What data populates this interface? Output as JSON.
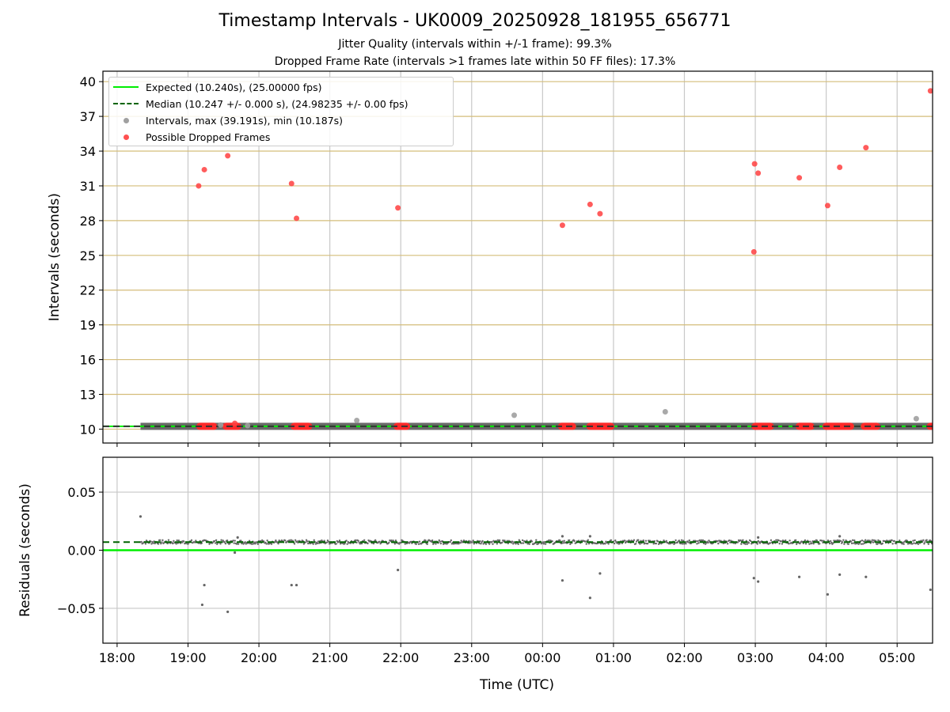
{
  "title": "Timestamp Intervals - UK0009_20250928_181955_656771",
  "subtitle_jitter": "Jitter Quality (intervals within +/-1 frame): 99.3%",
  "subtitle_dropped": "Dropped Frame Rate (intervals >1 frames late within 50 FF files): 17.3%",
  "colors": {
    "expected": "#00ee00",
    "median": "#006400",
    "intervals": "#a0a0a0",
    "dropped": "#ff4040",
    "hgrid_top": "#d4bd7a",
    "grid": "#c8c8c8",
    "residual_dots": "#666666"
  },
  "legend": {
    "expected": "Expected (10.240s), (25.00000 fps)",
    "median": "Median (10.247 +/- 0.000 s), (24.98235 +/- 0.00 fps)",
    "intervals": "Intervals, max (39.191s), min (10.187s)",
    "dropped": "Possible Dropped Frames"
  },
  "chart_data": [
    {
      "type": "scatter",
      "panel": "intervals",
      "ylabel": "Intervals (seconds)",
      "ylim": [
        8.8,
        40.9
      ],
      "yticks": [
        "10",
        "13",
        "16",
        "19",
        "22",
        "25",
        "28",
        "31",
        "34",
        "37",
        "40"
      ],
      "xlim_hours": [
        17.8,
        29.5
      ],
      "expected_value": 10.24,
      "median_value": 10.247,
      "intervals_outliers": [
        {
          "x": 21.38,
          "y": 10.75
        },
        {
          "x": 23.6,
          "y": 11.2
        },
        {
          "x": 25.73,
          "y": 11.5
        },
        {
          "x": 29.27,
          "y": 10.9
        },
        {
          "x": 19.46,
          "y": 10.35
        },
        {
          "x": 19.84,
          "y": 10.3
        }
      ],
      "intervals_band": {
        "x_start": 18.33,
        "x_end": 29.5,
        "y": 10.24
      },
      "dropped_frames": [
        {
          "x": 19.15,
          "y": 31.0
        },
        {
          "x": 19.23,
          "y": 32.4
        },
        {
          "x": 19.56,
          "y": 33.6
        },
        {
          "x": 20.46,
          "y": 31.2
        },
        {
          "x": 20.53,
          "y": 28.2
        },
        {
          "x": 21.96,
          "y": 29.1
        },
        {
          "x": 24.28,
          "y": 27.6
        },
        {
          "x": 24.67,
          "y": 29.4
        },
        {
          "x": 24.81,
          "y": 28.6
        },
        {
          "x": 26.98,
          "y": 25.3
        },
        {
          "x": 26.99,
          "y": 32.9
        },
        {
          "x": 27.04,
          "y": 32.1
        },
        {
          "x": 27.62,
          "y": 31.7
        },
        {
          "x": 28.02,
          "y": 29.3
        },
        {
          "x": 28.19,
          "y": 32.6
        },
        {
          "x": 28.56,
          "y": 34.3
        },
        {
          "x": 29.47,
          "y": 39.2
        },
        {
          "x": 19.66,
          "y": 10.5
        }
      ],
      "dropped_clusters": [
        [
          19.15,
          19.38
        ],
        [
          19.52,
          19.72
        ],
        [
          20.48,
          20.72
        ],
        [
          21.93,
          22.1
        ],
        [
          24.25,
          24.44
        ],
        [
          24.65,
          24.98
        ],
        [
          26.98,
          27.23
        ],
        [
          27.6,
          27.8
        ],
        [
          27.98,
          28.36
        ],
        [
          28.52,
          28.73
        ],
        [
          29.45,
          29.5
        ]
      ]
    },
    {
      "type": "scatter",
      "panel": "residuals",
      "ylabel": "Residuals (seconds)",
      "xlabel": "Time (UTC)",
      "ylim": [
        -0.08,
        0.08
      ],
      "yticks": [
        "0.05",
        "0.00",
        "−0.05"
      ],
      "ytick_values": [
        0.05,
        0.0,
        -0.05
      ],
      "xticks": [
        "18:00",
        "19:00",
        "20:00",
        "21:00",
        "22:00",
        "23:00",
        "00:00",
        "01:00",
        "02:00",
        "03:00",
        "04:00",
        "05:00"
      ],
      "xtick_hours": [
        18,
        19,
        20,
        21,
        22,
        23,
        24,
        25,
        26,
        27,
        28,
        29
      ],
      "expected_value": 0.0,
      "median_value": 0.007,
      "residual_outliers": [
        {
          "x": 18.33,
          "y": 0.029
        },
        {
          "x": 19.2,
          "y": -0.047
        },
        {
          "x": 19.23,
          "y": -0.03
        },
        {
          "x": 19.56,
          "y": -0.053
        },
        {
          "x": 19.66,
          "y": -0.002
        },
        {
          "x": 20.46,
          "y": -0.03
        },
        {
          "x": 20.53,
          "y": -0.03
        },
        {
          "x": 21.96,
          "y": -0.017
        },
        {
          "x": 24.28,
          "y": -0.026
        },
        {
          "x": 24.67,
          "y": -0.041
        },
        {
          "x": 24.81,
          "y": -0.02
        },
        {
          "x": 26.98,
          "y": -0.024
        },
        {
          "x": 27.04,
          "y": -0.027
        },
        {
          "x": 27.62,
          "y": -0.023
        },
        {
          "x": 28.02,
          "y": -0.038
        },
        {
          "x": 28.19,
          "y": -0.021
        },
        {
          "x": 28.56,
          "y": -0.023
        },
        {
          "x": 29.47,
          "y": -0.034
        },
        {
          "x": 24.28,
          "y": 0.012
        },
        {
          "x": 24.67,
          "y": 0.012
        },
        {
          "x": 28.19,
          "y": 0.012
        },
        {
          "x": 27.04,
          "y": 0.011
        },
        {
          "x": 19.7,
          "y": 0.011
        }
      ]
    }
  ]
}
